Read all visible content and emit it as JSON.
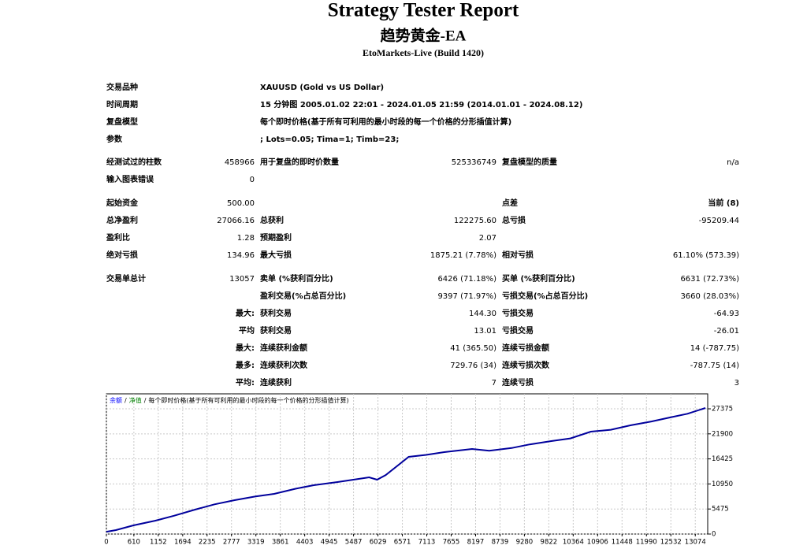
{
  "header": {
    "title": "Strategy Tester Report",
    "subtitle": "趋势黄金-EA",
    "server": "EtoMarkets-Live (Build 1420)"
  },
  "table": {
    "rows": [
      [
        "交易品种",
        null,
        "XAUUSD (Gold vs US Dollar)",
        null,
        null,
        null
      ],
      [
        "时间周期",
        null,
        "15 分钟图 2005.01.02 22:01 - 2024.01.05 21:59 (2014.01.01 - 2024.08.12)",
        null,
        null,
        null
      ],
      [
        "复盘模型",
        null,
        "每个即时价格(基于所有可利用的最小时段的每一个价格的分形插值计算)",
        null,
        null,
        null
      ],
      [
        "参数",
        null,
        "; Lots=0.05; Tima=1; Timb=23;",
        null,
        null,
        null
      ],
      [
        "经测试过的柱数",
        "458966",
        "用于复盘的即时价数量",
        "525336749",
        "复盘模型的质量",
        "n/a"
      ],
      [
        "输入图表错误",
        "0",
        null,
        null,
        null,
        null
      ],
      [
        "起始资金",
        "500.00",
        null,
        null,
        "点差",
        "当前 (8)"
      ],
      [
        "总净盈利",
        "27066.16",
        "总获利",
        "122275.60",
        "总亏损",
        "-95209.44"
      ],
      [
        "盈利比",
        "1.28",
        "预期盈利",
        "2.07",
        null,
        null
      ],
      [
        "绝对亏损",
        "134.96",
        "最大亏损",
        "1875.21 (7.78%)",
        "相对亏损",
        "61.10% (573.39)"
      ],
      [
        "交易单总计",
        "13057",
        "卖单 (%获利百分比)",
        "6426 (71.18%)",
        "买单 (%获利百分比)",
        "6631 (72.73%)"
      ],
      [
        null,
        null,
        "盈利交易(%占总百分比)",
        "9397 (71.97%)",
        "亏损交易(%占总百分比)",
        "3660 (28.03%)"
      ],
      [
        null,
        "最大:",
        "获利交易",
        "144.30",
        "亏损交易",
        "-64.93"
      ],
      [
        null,
        "平均",
        "获利交易",
        "13.01",
        "亏损交易",
        "-26.01"
      ],
      [
        null,
        "最大:",
        "连续获利金额",
        "41 (365.50)",
        "连续亏损金额",
        "14 (-787.75)"
      ],
      [
        null,
        "最多:",
        "连续获利次数",
        "729.76 (34)",
        "连续亏损次数",
        "-787.75 (14)"
      ],
      [
        null,
        "平均:",
        "连续获利",
        "7",
        "连续亏损",
        "3"
      ]
    ]
  },
  "chart": {
    "type": "line",
    "legend": {
      "balance": "余额",
      "equity": "净值",
      "separator": "/",
      "model": "每个即时价格(基于所有可利用的最小时段的每一个价格的分形插值计算)"
    },
    "color": "#00009c",
    "balance_color": "#0000ff",
    "equity_color": "#008000",
    "x": [
      0,
      211,
      600,
      1090,
      1500,
      1968,
      2400,
      2847,
      3300,
      3725,
      4200,
      4604,
      5131,
      5500,
      5834,
      6010,
      6200,
      6712,
      7100,
      7500,
      8118,
      8500,
      8997,
      9400,
      9877,
      10300,
      10755,
      11200,
      11633,
      12100,
      12512,
      12900,
      13300
    ],
    "values": [
      500,
      860,
      1900,
      2930,
      4000,
      5340,
      6500,
      7400,
      8200,
      8780,
      9900,
      10670,
      11360,
      11900,
      12400,
      11880,
      12900,
      16870,
      17300,
      17900,
      18590,
      18200,
      18800,
      19600,
      20316,
      20900,
      22380,
      22800,
      23760,
      24600,
      25480,
      26300,
      27550
    ],
    "xlim": [
      0,
      13350
    ],
    "ylim": [
      0,
      30650
    ],
    "xticks": [
      0,
      610,
      1152,
      1694,
      2235,
      2777,
      3319,
      3861,
      4403,
      4945,
      5487,
      6029,
      6571,
      7113,
      7655,
      8197,
      8739,
      9280,
      9822,
      10364,
      10906,
      11448,
      11990,
      12532,
      13074
    ],
    "yticks": [
      0,
      5475,
      10950,
      16425,
      21900,
      27375
    ],
    "grid": true
  }
}
